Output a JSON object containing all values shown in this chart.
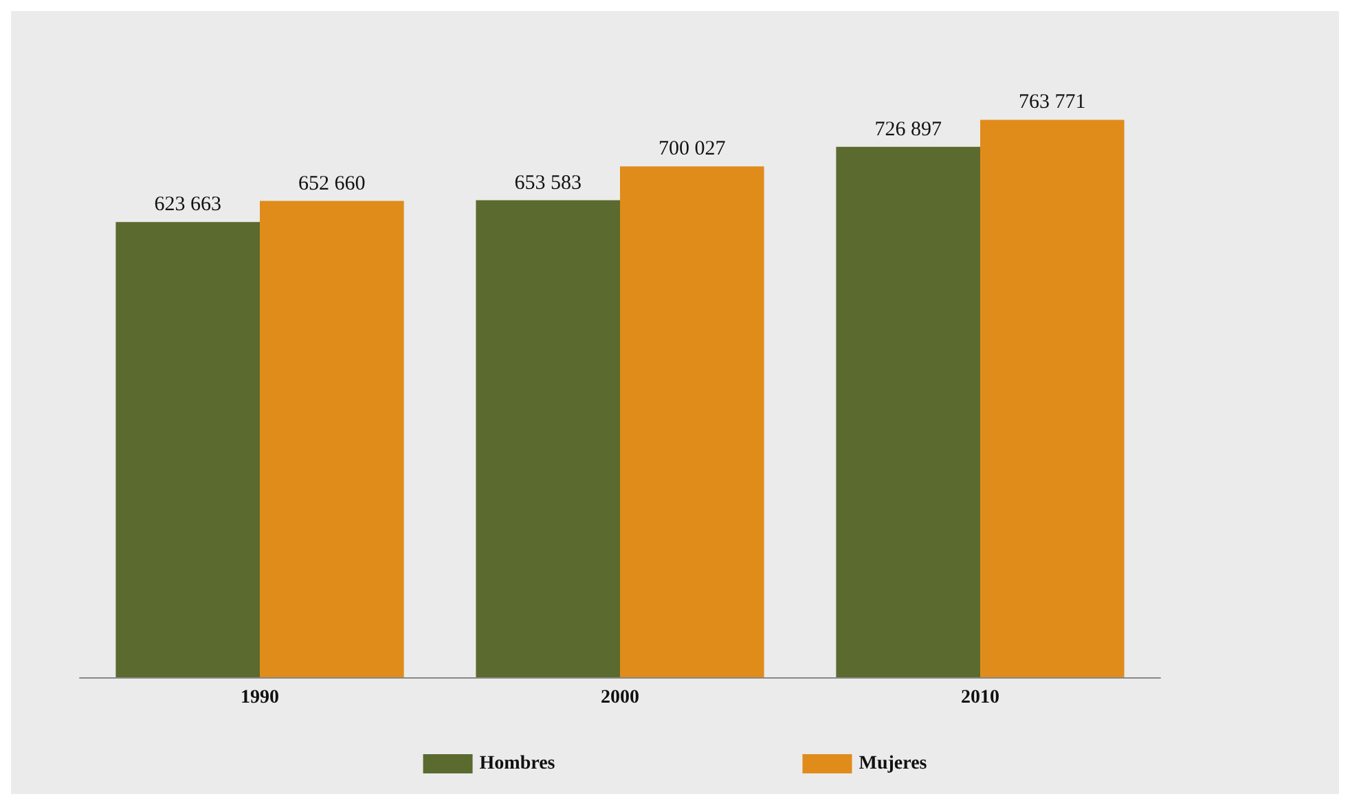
{
  "chart_data": {
    "type": "bar",
    "categories": [
      "1990",
      "2000",
      "2010"
    ],
    "series": [
      {
        "name": "Hombres",
        "color": "#5b6a2e",
        "values": [
          623663,
          653583,
          726897
        ],
        "value_labels": [
          "623 663",
          "653 583",
          "726 897"
        ]
      },
      {
        "name": "Mujeres",
        "color": "#e08c1a",
        "values": [
          652660,
          700027,
          763771
        ],
        "value_labels": [
          "652 660",
          "700 027",
          "763 771"
        ]
      }
    ],
    "legend": "bottom"
  }
}
